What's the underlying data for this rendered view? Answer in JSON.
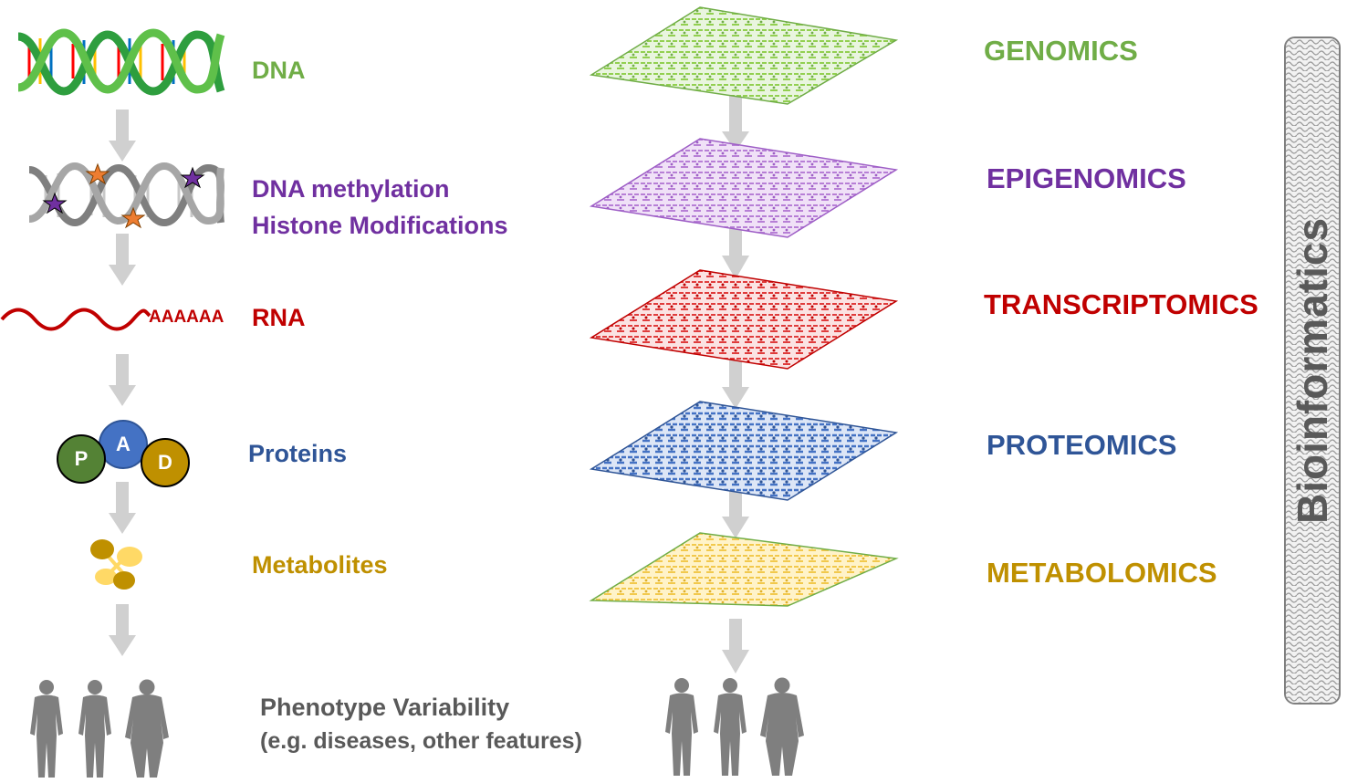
{
  "left": {
    "dna": "DNA",
    "methylation_line1": "DNA methylation",
    "methylation_line2": "Histone Modifications",
    "rna": "RNA",
    "rna_tail": "AAAAAA",
    "proteins": "Proteins",
    "protein_p": "P",
    "protein_a": "A",
    "protein_d": "D",
    "metabolites": "Metabolites",
    "phenotype_line1": "Phenotype Variability",
    "phenotype_line2": "(e.g. diseases, other features)"
  },
  "omics": {
    "genomics": "GENOMICS",
    "epigenomics": "EPIGENOMICS",
    "transcriptomics": "TRANSCRIPTOMICS",
    "proteomics": "PROTEOMICS",
    "metabolomics": "METABOLOMICS"
  },
  "sidebar": {
    "label": "Bioinformatics"
  },
  "colors": {
    "dna_green": "#70ad47",
    "purple": "#7030a0",
    "red": "#c00000",
    "blue": "#2f5597",
    "gold": "#bf9000",
    "gray_text": "#595959",
    "arrow_gray": "#d0d0d0",
    "silhouette": "#7f7f7f"
  },
  "icons": {
    "dna": "double-helix-icon",
    "methylated_dna": "methylated-helix-icon",
    "rna": "rna-strand-icon",
    "proteins": "protein-cluster-icon",
    "metabolites": "metabolite-icon",
    "people": "people-silhouette-icon"
  }
}
